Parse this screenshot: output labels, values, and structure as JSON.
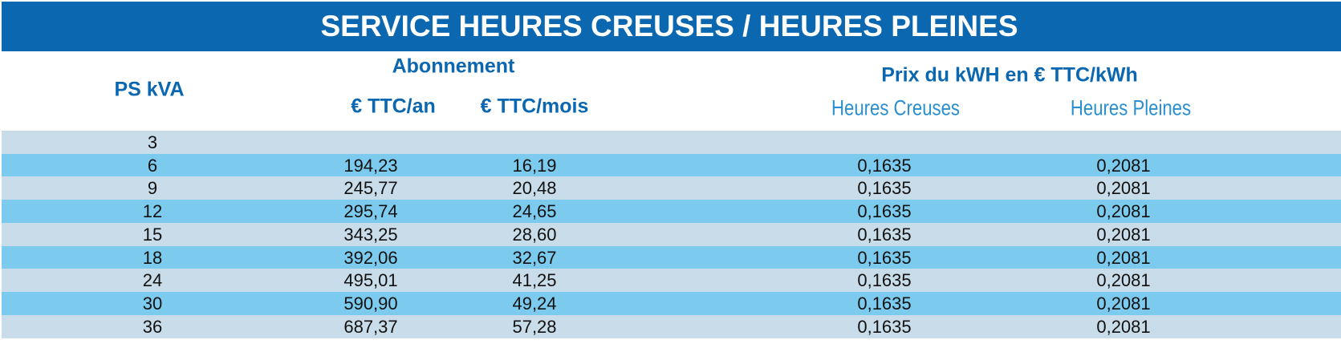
{
  "title": "SERVICE HEURES CREUSES / HEURES PLEINES",
  "header": {
    "ps": "PS kVA",
    "abonnement": "Abonnement",
    "an": "€ TTC/an",
    "mois": "€ TTC/mois",
    "prix": "Prix du kWH en € TTC/kWh",
    "creuses": "Heures Creuses",
    "pleines": "Heures Pleines"
  },
  "table": {
    "rows": [
      {
        "ps": "3"
      },
      {
        "ps": "6",
        "an": "194,23",
        "mois": "16,19",
        "creuses": "0,1635",
        "pleines": "0,2081"
      },
      {
        "ps": "9",
        "an": "245,77",
        "mois": "20,48",
        "creuses": "0,1635",
        "pleines": "0,2081"
      },
      {
        "ps": "12",
        "an": "295,74",
        "mois": "24,65",
        "creuses": "0,1635",
        "pleines": "0,2081"
      },
      {
        "ps": "15",
        "an": "343,25",
        "mois": "28,60",
        "creuses": "0,1635",
        "pleines": "0,2081"
      },
      {
        "ps": "18",
        "an": "392,06",
        "mois": "32,67",
        "creuses": "0,1635",
        "pleines": "0,2081"
      },
      {
        "ps": "24",
        "an": "495,01",
        "mois": "41,25",
        "creuses": "0,1635",
        "pleines": "0,2081"
      },
      {
        "ps": "30",
        "an": "590,90",
        "mois": "49,24",
        "creuses": "0,1635",
        "pleines": "0,2081"
      },
      {
        "ps": "36",
        "an": "687,37",
        "mois": "57,28",
        "creuses": "0,1635",
        "pleines": "0,2081"
      }
    ]
  }
}
